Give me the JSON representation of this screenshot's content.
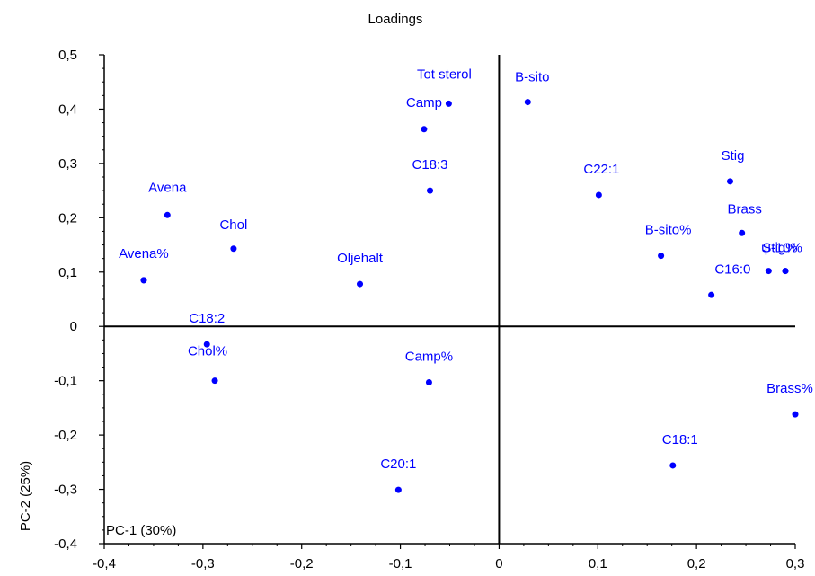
{
  "chart_data": {
    "type": "scatter",
    "title": "Loadings",
    "xlabel": "PC-1 (30%)",
    "ylabel": "PC-2 (25%)",
    "xlim": [
      -0.4,
      0.3
    ],
    "ylim": [
      -0.4,
      0.5
    ],
    "x_ticks": [
      -0.4,
      -0.3,
      -0.2,
      -0.1,
      0,
      0.1,
      0.2,
      0.3
    ],
    "y_ticks": [
      -0.4,
      -0.3,
      -0.2,
      -0.1,
      0,
      0.1,
      0.2,
      0.3,
      0.4,
      0.5
    ],
    "x_tick_labels": [
      "-0,4",
      "-0,3",
      "-0,2",
      "-0,1",
      "0",
      "0,1",
      "0,2",
      "0,3"
    ],
    "y_tick_labels": [
      "-0,4",
      "-0,3",
      "-0,2",
      "-0,1",
      "0",
      "0,1",
      "0,2",
      "0,3",
      "0,4",
      "0,5"
    ],
    "point_color": "#0000ff",
    "points": [
      {
        "x": -0.36,
        "y": 0.085
      },
      {
        "x": -0.336,
        "y": 0.205,
        "label": "Avena"
      },
      {
        "x": -0.269,
        "y": 0.143,
        "label": "Chol"
      },
      {
        "x": -0.36,
        "y": 0.085,
        "label": "Avena%"
      },
      {
        "x": -0.296,
        "y": -0.033,
        "label": "C18:2"
      },
      {
        "x": -0.288,
        "y": -0.1,
        "label": "Chol%"
      },
      {
        "x": -0.141,
        "y": 0.078,
        "label": "Oljehalt"
      },
      {
        "x": -0.076,
        "y": 0.363,
        "label": "Camp"
      },
      {
        "x": -0.051,
        "y": 0.41,
        "label": "Tot sterol"
      },
      {
        "x": -0.07,
        "y": 0.25,
        "label": "C18:3"
      },
      {
        "x": -0.071,
        "y": -0.103,
        "label": "Camp%"
      },
      {
        "x": -0.102,
        "y": -0.301,
        "label": "C20:1"
      },
      {
        "x": 0.029,
        "y": 0.413,
        "label": "B-sito"
      },
      {
        "x": 0.101,
        "y": 0.242,
        "label": "C22:1"
      },
      {
        "x": 0.164,
        "y": 0.13,
        "label": "B-sito%"
      },
      {
        "x": 0.234,
        "y": 0.267,
        "label": "Stig"
      },
      {
        "x": 0.246,
        "y": 0.172,
        "label": "Brass"
      },
      {
        "x": 0.273,
        "y": 0.102,
        "label": "C16:0"
      },
      {
        "x": 0.29,
        "y": 0.102,
        "label": "Stig%"
      },
      {
        "x": 0.29,
        "y": 0.102,
        "label": "ψ-10%"
      },
      {
        "x": 0.215,
        "y": 0.058
      },
      {
        "x": 0.3,
        "y": -0.162,
        "label": "Brass%"
      },
      {
        "x": 0.176,
        "y": -0.256,
        "label": "C18:1"
      }
    ]
  }
}
